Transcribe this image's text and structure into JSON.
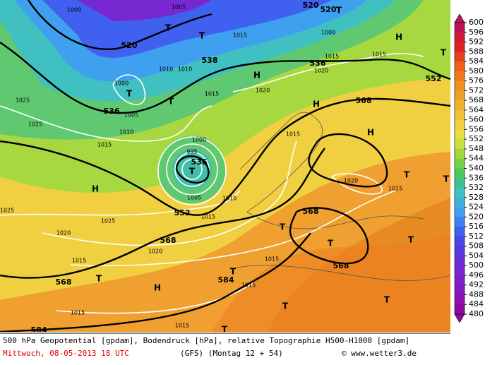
{
  "map": {
    "contour_labels": [
      "520",
      "536",
      "536",
      "552",
      "568",
      "568",
      "584",
      "584",
      "568",
      "552",
      "538",
      "536",
      "520",
      "520",
      "568",
      "568"
    ],
    "isobar_labels": [
      "1000",
      "1005",
      "1010",
      "1015",
      "1025",
      "1025",
      "1015",
      "1020",
      "1010",
      "1015",
      "1000",
      "995",
      "1005",
      "1010",
      "1015",
      "1025",
      "1020",
      "1020",
      "1015",
      "1015",
      "1015",
      "1015",
      "1015",
      "1015",
      "1020",
      "1015",
      "1015",
      "1020",
      "1015",
      "1000",
      "1010",
      "1000",
      "1005",
      "1025"
    ],
    "high_labels": [
      "H",
      "H",
      "H",
      "H",
      "H",
      "H"
    ],
    "low_labels": [
      "T",
      "T",
      "T",
      "T",
      "T",
      "T",
      "T",
      "T",
      "T",
      "T",
      "T",
      "T",
      "T",
      "T",
      "T",
      "T",
      "T"
    ]
  },
  "colorbar": {
    "labels": [
      600,
      596,
      592,
      588,
      584,
      580,
      576,
      572,
      568,
      564,
      560,
      556,
      552,
      548,
      544,
      540,
      536,
      532,
      528,
      524,
      520,
      516,
      512,
      508,
      504,
      500,
      496,
      492,
      488,
      484,
      480
    ],
    "colors": [
      "#c0105a",
      "#d01838",
      "#e02020",
      "#e84020",
      "#f06018",
      "#f07818",
      "#f09020",
      "#f0a028",
      "#f0b030",
      "#f0c038",
      "#f0d040",
      "#e8e040",
      "#c8e040",
      "#a0d840",
      "#78d048",
      "#50c860",
      "#40c090",
      "#40c0c0",
      "#40b0e0",
      "#40a0f0",
      "#4080f0",
      "#4060f0",
      "#4848e8",
      "#5838e0",
      "#6830d8",
      "#7828d0",
      "#8020c8",
      "#8818c0",
      "#9010b0",
      "#9008a0"
    ]
  },
  "footer": {
    "line1": "500 hPa Geopotential [gpdam], Bodendruck [hPa], relative Topographie H500-H1000 [gpdam]",
    "date": "Mittwoch, 08-05-2013  18 UTC",
    "model": "(GFS)  (Montag 12 + 54)",
    "credit": "© www.wetter3.de"
  }
}
